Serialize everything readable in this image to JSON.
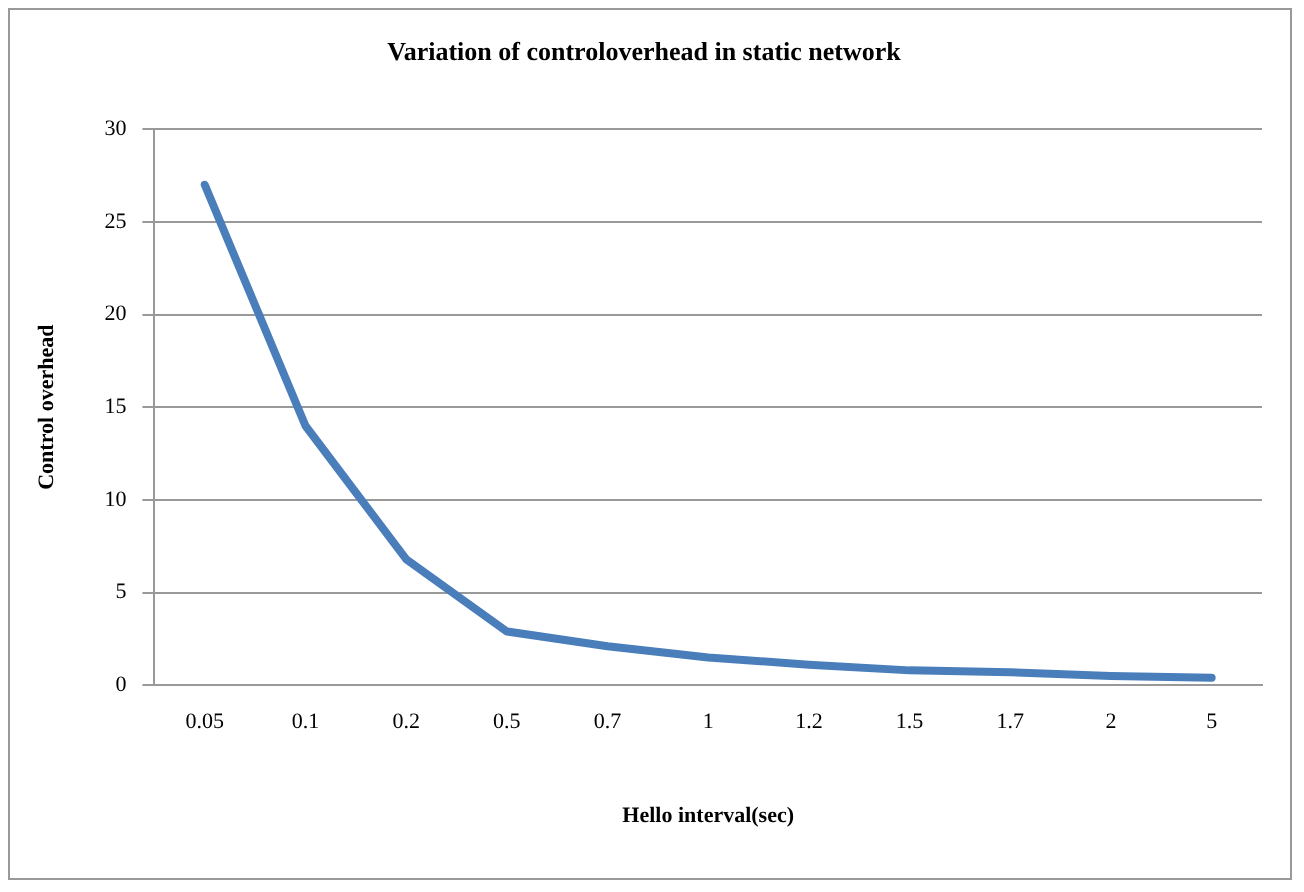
{
  "chart_data": {
    "type": "line",
    "title": "Variation of controloverhead in static network",
    "xlabel": "Hello interval(sec)",
    "ylabel": "Control overhead",
    "categories": [
      "0.05",
      "0.1",
      "0.2",
      "0.5",
      "0.7",
      "1",
      "1.2",
      "1.5",
      "1.7",
      "2",
      "5"
    ],
    "series": [
      {
        "color": "#4a7ebb",
        "values": [
          27,
          14,
          6.8,
          2.9,
          2.1,
          1.5,
          1.1,
          0.8,
          0.7,
          0.5,
          0.4
        ]
      }
    ],
    "ylim": [
      0,
      30
    ],
    "yticks": [
      0,
      5,
      10,
      15,
      20,
      25,
      30
    ],
    "grid": "y",
    "legend": false,
    "marker": "none",
    "line_style": "solid"
  }
}
